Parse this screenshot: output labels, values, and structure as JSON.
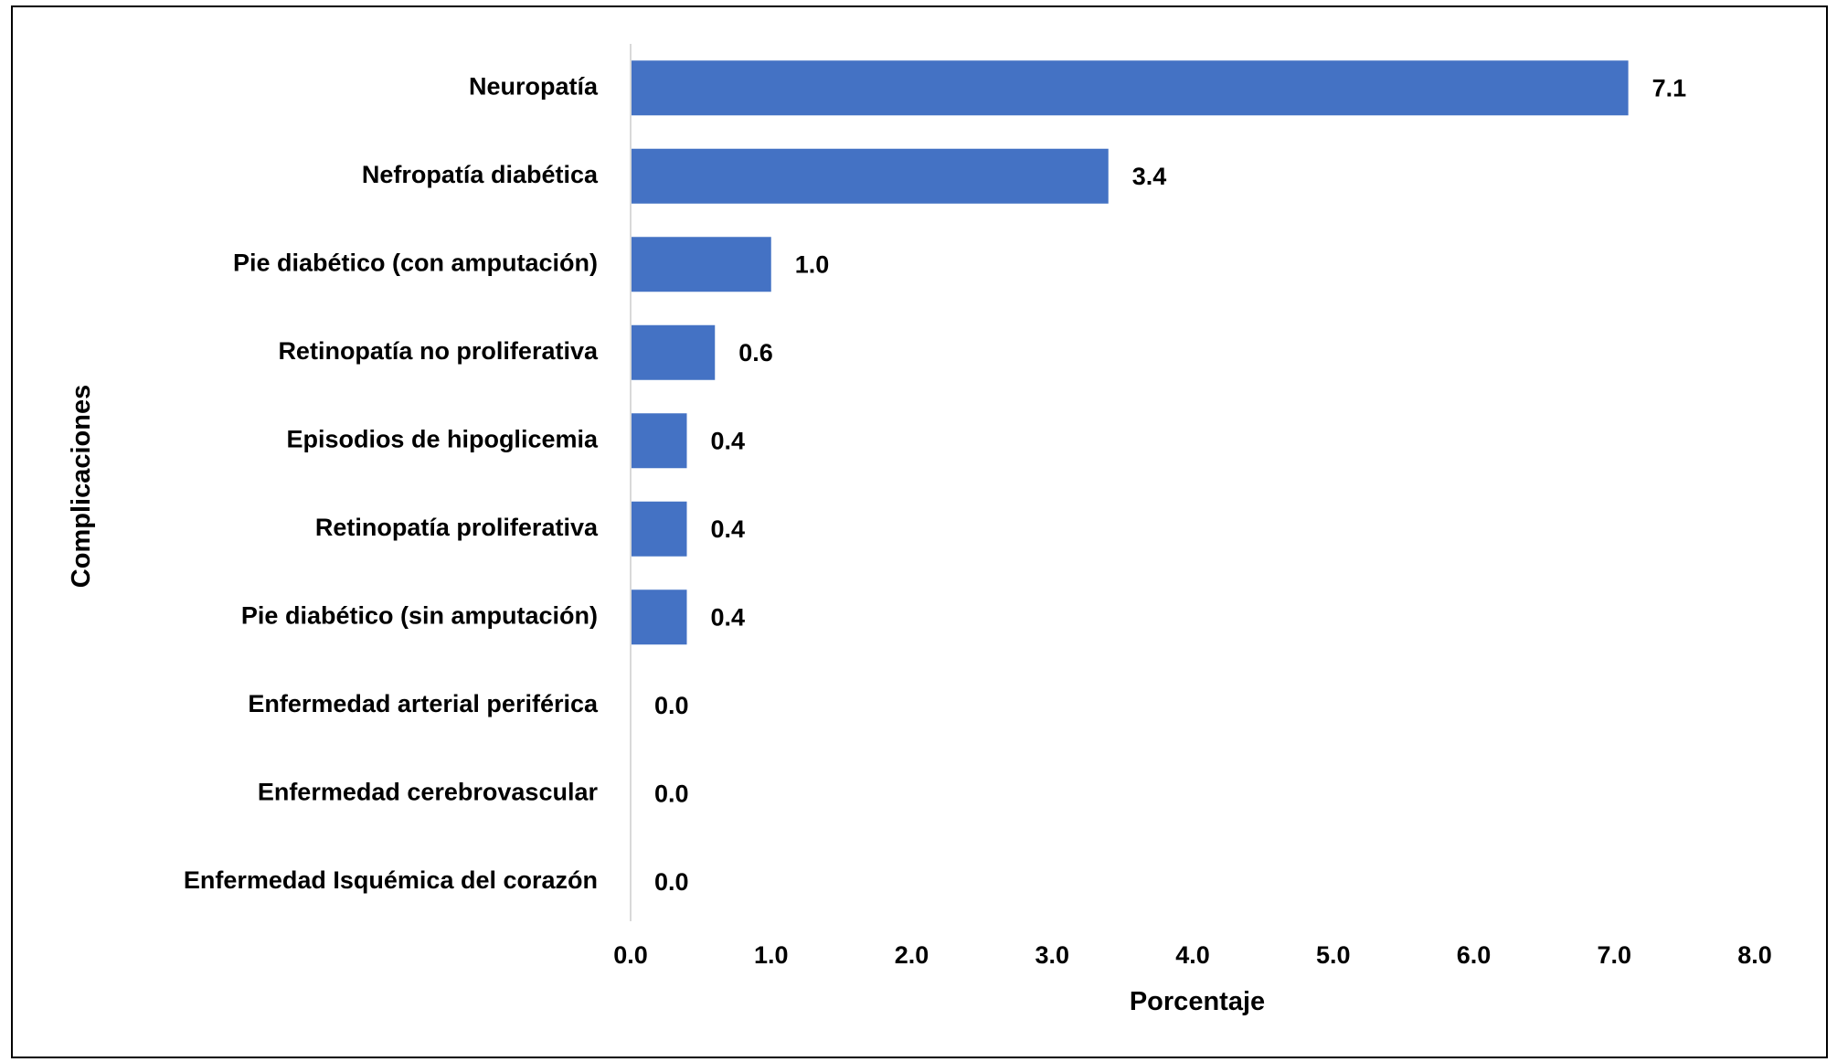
{
  "chart_data": {
    "type": "bar",
    "orientation": "horizontal",
    "categories": [
      "Neuropatía",
      "Nefropatía diabética",
      "Pie diabético (con amputación)",
      "Retinopatía no proliferativa",
      "Episodios de hipoglicemia",
      "Retinopatía proliferativa",
      "Pie diabético (sin amputación)",
      "Enfermedad arterial periférica",
      "Enfermedad cerebrovascular",
      "Enfermedad Isquémica del corazón"
    ],
    "values": [
      7.1,
      3.4,
      1.0,
      0.6,
      0.4,
      0.4,
      0.4,
      0.0,
      0.0,
      0.0
    ],
    "value_labels": [
      "7.1",
      "3.4",
      "1.0",
      "0.6",
      "0.4",
      "0.4",
      "0.4",
      "0.0",
      "0.0",
      "0.0"
    ],
    "xlabel": "Porcentaje",
    "ylabel": "Complicaciones",
    "xlim": [
      0,
      8
    ],
    "xticks": [
      "0.0",
      "1.0",
      "2.0",
      "3.0",
      "4.0",
      "5.0",
      "6.0",
      "7.0",
      "8.0"
    ],
    "grid": false,
    "legend": "none",
    "bar_color": "#4472C4",
    "axis_color": "#D9D9D9"
  }
}
